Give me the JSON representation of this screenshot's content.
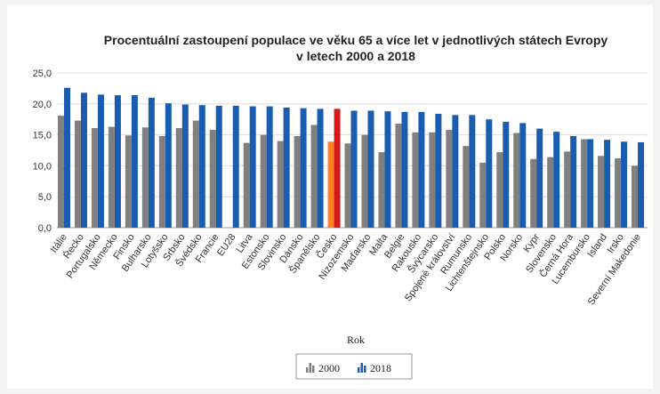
{
  "chart_data": {
    "type": "bar",
    "title": "Procentuální zastoupení populace ve věku 65 a více let v jednotlivých státech Evropy",
    "subtitle": "v letech 2000 a 2018",
    "xlabel": "Rok",
    "ylabel": "",
    "ylim": [
      0,
      25
    ],
    "yticks": [
      "0,0",
      "5,0",
      "10,0",
      "15,0",
      "20,0",
      "25,0"
    ],
    "grid": true,
    "legend_position": "bottom-center",
    "categories": [
      "Itálie",
      "Řecko",
      "Portugalsko",
      "Německo",
      "Finsko",
      "Bulharsko",
      "Lotyšsko",
      "Srbsko",
      "Švédsko",
      "Francie",
      "EU28",
      "Litva",
      "Estonsko",
      "Slovinsko",
      "Dánsko",
      "Španělsko",
      "Česko",
      "Nizozemsko",
      "Maďarsko",
      "Malta",
      "Belgie",
      "Rakousko",
      "Švýcarsko",
      "Spojené království",
      "Rumunsko",
      "Lichtenštejnsko",
      "Polsko",
      "Norsko",
      "Kypr",
      "Slovensko",
      "Černá Hora",
      "Lucembursko",
      "Island",
      "Irsko",
      "Severní Makedonie"
    ],
    "highlight_category": "Česko",
    "series": [
      {
        "name": "2000",
        "color": "#808080",
        "highlight_color": "#ff7f27",
        "values": [
          18.1,
          17.3,
          16.1,
          16.3,
          14.9,
          16.2,
          14.8,
          16.1,
          17.3,
          15.8,
          null,
          13.7,
          15.0,
          14.0,
          14.8,
          16.6,
          13.9,
          13.6,
          15.0,
          12.2,
          16.8,
          15.4,
          15.4,
          15.8,
          13.2,
          10.5,
          12.2,
          15.3,
          11.1,
          11.4,
          12.3,
          14.3,
          11.6,
          11.2,
          10.0
        ]
      },
      {
        "name": "2018",
        "color": "#1a5cb0",
        "highlight_color": "#d21a1a",
        "values": [
          22.6,
          21.8,
          21.5,
          21.4,
          21.4,
          21.0,
          20.1,
          19.9,
          19.8,
          19.7,
          19.7,
          19.6,
          19.6,
          19.4,
          19.3,
          19.2,
          19.2,
          18.9,
          18.9,
          18.8,
          18.7,
          18.7,
          18.4,
          18.2,
          18.2,
          17.5,
          17.1,
          16.9,
          16.0,
          15.5,
          14.8,
          14.3,
          14.2,
          13.9,
          13.8
        ]
      }
    ]
  }
}
